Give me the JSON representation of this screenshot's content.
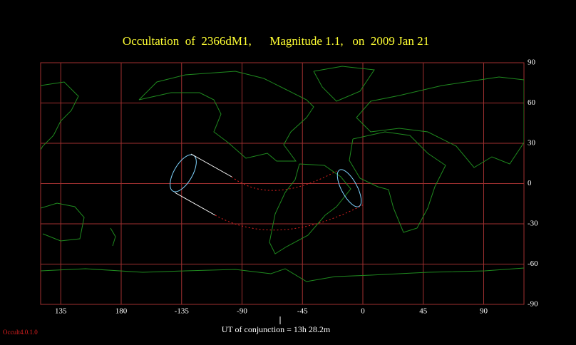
{
  "title": "Occultation  of  2366dM1,      Magnitude 1.1,   on  2009 Jan 21",
  "map": {
    "xlim": [
      120,
      480
    ],
    "ylim": [
      -90,
      90
    ],
    "xticks": [
      135,
      180,
      {
        "value": 225,
        "label": "-135"
      },
      {
        "value": 270,
        "label": "-90"
      },
      {
        "value": 315,
        "label": "-45"
      },
      {
        "value": 360,
        "label": "0"
      },
      {
        "value": 405,
        "label": "45"
      },
      {
        "value": 450,
        "label": "90"
      }
    ],
    "yticks": [
      90,
      60,
      30,
      0,
      -30,
      -60,
      -90
    ]
  },
  "conjunction_label": "UT of conjunction = 13h 28.2m",
  "version": "Occult4.0.1.0"
}
